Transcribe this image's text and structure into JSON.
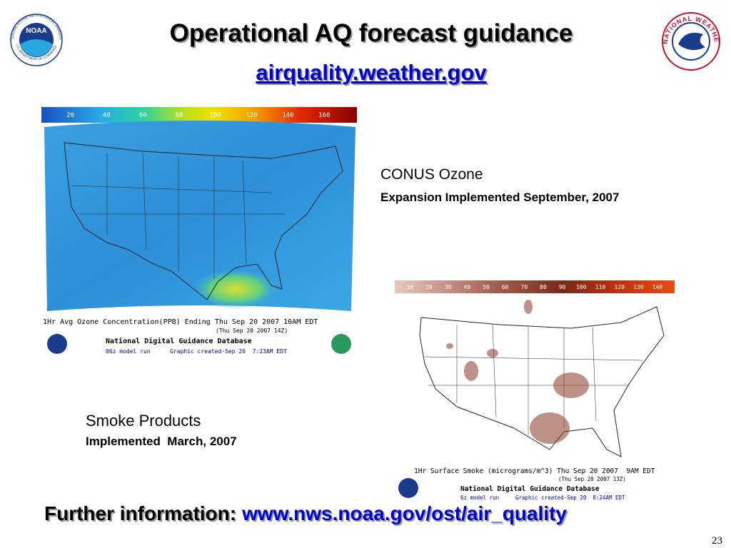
{
  "header": {
    "title": "Operational AQ forecast guidance",
    "link": "airquality.weather.gov"
  },
  "logos": {
    "noaa": {
      "label": "NOAA",
      "ring_top": "NATIONAL OCEANIC AND ATMOSPHERIC ADMINISTRATION",
      "ring_bottom": "U.S. DEPARTMENT OF COMMERCE"
    },
    "nws": {
      "ring": "NATIONAL WEATHER SERVICE"
    }
  },
  "ozone_panel": {
    "heading": "CONUS Ozone",
    "note": "Expansion Implemented September, 2007",
    "map": {
      "scale": [
        20,
        40,
        60,
        80,
        100,
        120,
        140,
        160
      ],
      "caption": "1Hr Avg Ozone Concentration(PPB) Ending Thu Sep 20 2007 10AM EDT",
      "issued": "(Thu Sep 20 2007 14Z)",
      "database": "National Digital Guidance Database",
      "run": "06z model run",
      "created": "Graphic created-Sep 20  7:23AM EDT"
    }
  },
  "smoke_panel": {
    "heading": "Smoke Products",
    "note": "Implemented  March, 2007",
    "map": {
      "scale": [
        10,
        20,
        30,
        40,
        50,
        60,
        70,
        80,
        90,
        100,
        110,
        120,
        130,
        140
      ],
      "caption": "1Hr Surface Smoke (micrograms/m^3) Thu Sep 20 2007  9AM EDT",
      "issued": "(Thu Sep 20 2007 13Z)",
      "database": "National Digital Guidance Database",
      "run": "6z model run",
      "created": "Graphic created-Sep 20  8:24AM EDT"
    }
  },
  "footer": {
    "label": "Further information:",
    "link": "www.nws.noaa.gov/ost/air_quality",
    "page": "23"
  }
}
